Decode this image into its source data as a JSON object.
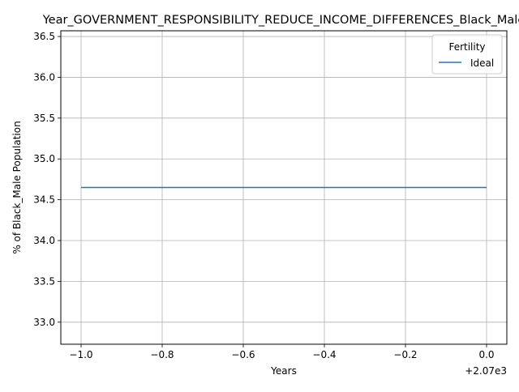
{
  "chart_data": {
    "type": "line",
    "title": "Year_GOVERNMENT_RESPONSIBILITY_REDUCE_INCOME_DIFFERENCES_Black_Male",
    "xlabel": "Years",
    "ylabel": "% of Black_Male Population",
    "x_offset_label": "+2.07e3",
    "xlim": [
      -1.05,
      0.05
    ],
    "ylim": [
      32.73,
      36.57
    ],
    "grid": true,
    "legend_title": "Fertility",
    "legend_position": "top-right",
    "x_ticks": [
      {
        "value": -1.0,
        "label": "−1.0"
      },
      {
        "value": -0.8,
        "label": "−0.8"
      },
      {
        "value": -0.6,
        "label": "−0.6"
      },
      {
        "value": -0.4,
        "label": "−0.4"
      },
      {
        "value": -0.2,
        "label": "−0.2"
      },
      {
        "value": 0.0,
        "label": "0.0"
      }
    ],
    "y_ticks": [
      {
        "value": 33.0,
        "label": "33.0"
      },
      {
        "value": 33.5,
        "label": "33.5"
      },
      {
        "value": 34.0,
        "label": "34.0"
      },
      {
        "value": 34.5,
        "label": "34.5"
      },
      {
        "value": 35.0,
        "label": "35.0"
      },
      {
        "value": 35.5,
        "label": "35.5"
      },
      {
        "value": 36.0,
        "label": "36.0"
      },
      {
        "value": 36.5,
        "label": "36.5"
      }
    ],
    "series": [
      {
        "name": "Ideal",
        "color": "#1f77b4",
        "x": [
          -1.0,
          0.0
        ],
        "y": [
          34.65,
          34.65
        ]
      }
    ]
  }
}
